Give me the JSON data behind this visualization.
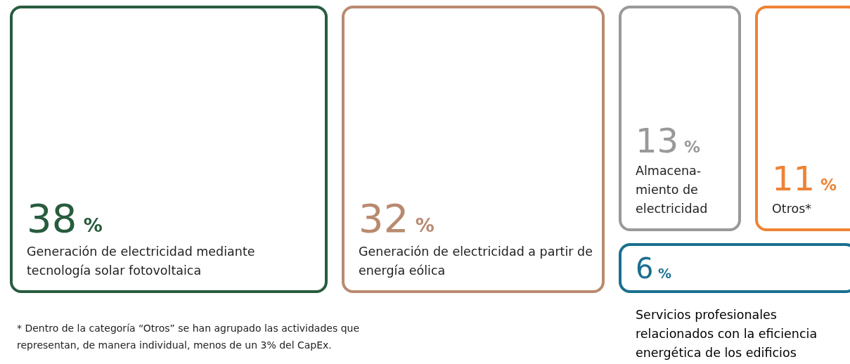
{
  "chart_data": {
    "type": "other",
    "categories": [
      "Generación de electricidad mediante tecnología solar fotovoltaica",
      "Generación de electricidad a partir de energía eólica",
      "Almacena- miento de electricidad",
      "Otros*",
      "Servicios profesionales relacionados con la eficiencia energética de los edificios"
    ],
    "values": [
      38,
      32,
      13,
      11,
      6
    ],
    "value_labels": [
      "38 %",
      "32 %",
      "13 %",
      "11 %",
      "6 %"
    ],
    "colors": [
      "#285c3e",
      "#b98a70",
      "#999999",
      "#ee8335",
      "#1a6f8f"
    ],
    "annotations": [
      "* Dentro de la categoría “Otros” se han agrupado las actividades que representan, de manera individual, menos de un 3% del CapEx."
    ]
  }
}
